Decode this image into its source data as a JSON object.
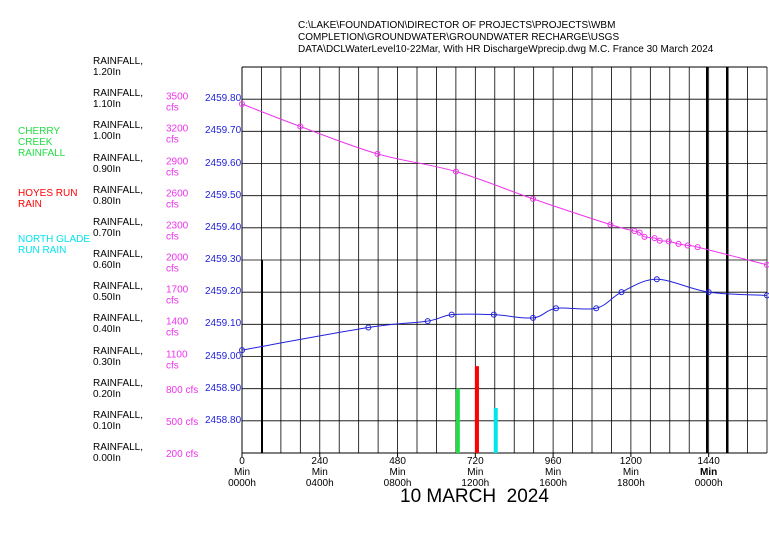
{
  "chart_data": {
    "type": "line",
    "title_lines": [
      "C:\\LAKE\\FOUNDATION\\DIRECTOR OF PROJECTS\\PROJECTS\\WBM",
      "COMPLETION\\GROUNDWATER\\GROUNDWATER RECHARGE\\USGS",
      "DATA\\DCLWaterLevel10-22Mar, With HR DischargeWprecip.dwg M.C. France 30 March 2024"
    ],
    "date_label": "10 MARCH  2024",
    "xlim": [
      0,
      1620
    ],
    "xticks": [
      0,
      240,
      480,
      720,
      960,
      1200,
      1440
    ],
    "xtick_units": [
      "Min",
      "Min",
      "Min",
      "Min",
      "Min",
      "Min",
      "Min"
    ],
    "xtick_times": [
      "0000h",
      "0400h",
      "0800h",
      "1200h",
      "1600h",
      "1800h",
      "0000h"
    ],
    "xgrid": [
      60,
      120,
      180,
      240,
      300,
      360,
      420,
      480,
      540,
      600,
      660,
      720,
      780,
      840,
      900,
      960,
      1020,
      1080,
      1140,
      1200,
      1260,
      1320,
      1380,
      1440,
      1500,
      1560,
      1620
    ],
    "ylim": [
      2458.7,
      2459.9
    ],
    "yticks": [
      {
        "value": 2458.8,
        "label": "2458.80"
      },
      {
        "value": 2458.9,
        "label": "2458.90"
      },
      {
        "value": 2459.0,
        "label": "2459.00"
      },
      {
        "value": 2459.1,
        "label": "2459.10"
      },
      {
        "value": 2459.2,
        "label": "2459.20"
      },
      {
        "value": 2459.3,
        "label": "2459.30"
      },
      {
        "value": 2459.4,
        "label": "2459.40"
      },
      {
        "value": 2459.5,
        "label": "2459.50"
      },
      {
        "value": 2459.6,
        "label": "2459.60"
      },
      {
        "value": 2459.7,
        "label": "2459.70"
      },
      {
        "value": 2459.8,
        "label": "2459.80"
      }
    ],
    "y2lim": [
      200,
      3800
    ],
    "y2ticks": [
      {
        "value": 200,
        "label": "200 cfs"
      },
      {
        "value": 500,
        "label": "500 cfs"
      },
      {
        "value": 800,
        "label": "800 cfs"
      },
      {
        "value": 1100,
        "label": "1100\ncfs"
      },
      {
        "value": 1400,
        "label": "1400\ncfs"
      },
      {
        "value": 1700,
        "label": "1700\ncfs"
      },
      {
        "value": 2000,
        "label": "2000\ncfs"
      },
      {
        "value": 2300,
        "label": "2300\ncfs"
      },
      {
        "value": 2600,
        "label": "2600\ncfs"
      },
      {
        "value": 2900,
        "label": "2900\ncfs"
      },
      {
        "value": 3200,
        "label": "3200\ncfs"
      },
      {
        "value": 3500,
        "label": "3500\ncfs"
      }
    ],
    "y3lim": [
      0,
      1.2
    ],
    "y3ticks": [
      {
        "value": 0,
        "label": "RAINFALL,\n0.00In"
      },
      {
        "value": 0.1,
        "label": "RAINFALL,\n0.10In"
      },
      {
        "value": 0.2,
        "label": "RAINFALL,\n0.20In"
      },
      {
        "value": 0.3,
        "label": "RAINFALL,\n0.30In"
      },
      {
        "value": 0.4,
        "label": "RAINFALL,\n0.40In"
      },
      {
        "value": 0.5,
        "label": "RAINFALL,\n0.50In"
      },
      {
        "value": 0.6,
        "label": "RAINFALL,\n0.60In"
      },
      {
        "value": 0.7,
        "label": "RAINFALL,\n0.70In"
      },
      {
        "value": 0.8,
        "label": "RAINFALL,\n0.80In"
      },
      {
        "value": 0.9,
        "label": "RAINFALL,\n0.90In"
      },
      {
        "value": 1.0,
        "label": "RAINFALL,\n1.00In"
      },
      {
        "value": 1.1,
        "label": "RAINFALL,\n1.10In"
      },
      {
        "value": 1.2,
        "label": "RAINFALL,\n1.20In"
      }
    ],
    "grid": true,
    "series": [
      {
        "type": "line",
        "color": "#ee33ee",
        "x": [
          0,
          180,
          418,
          660,
          898,
          1137,
          1211,
          1227,
          1242,
          1273,
          1289,
          1317,
          1347,
          1375,
          1406,
          1620
        ],
        "values": [
          2459.785,
          2459.715,
          2459.63,
          2459.575,
          2459.49,
          2459.41,
          2459.39,
          2459.385,
          2459.372,
          2459.368,
          2459.36,
          2459.358,
          2459.35,
          2459.345,
          2459.34,
          2459.285
        ]
      },
      {
        "type": "line",
        "color": "#2222dd",
        "x": [
          0,
          390,
          573,
          647,
          777,
          898,
          969,
          1093,
          1171,
          1280,
          1440,
          1620
        ],
        "values": [
          2459.02,
          2459.09,
          2459.11,
          2459.13,
          2459.13,
          2459.12,
          2459.15,
          2459.15,
          2459.2,
          2459.24,
          2459.2,
          2459.19
        ]
      },
      {
        "type": "bar",
        "axis": "y3",
        "name": "CHERRY\nCREEK\nRAINFALL",
        "color": "#22dd44",
        "x": [
          666
        ],
        "values": [
          0.2
        ]
      },
      {
        "type": "bar",
        "axis": "y3",
        "name": "HOYES RUN\nRAIN",
        "color": "#ff0000",
        "x": [
          725
        ],
        "values": [
          0.27
        ]
      },
      {
        "type": "bar",
        "axis": "y3",
        "name": "NORTH GLADE\nRUN RAIN",
        "color": "#00e5ee",
        "x": [
          783
        ],
        "values": [
          0.14
        ]
      }
    ]
  }
}
